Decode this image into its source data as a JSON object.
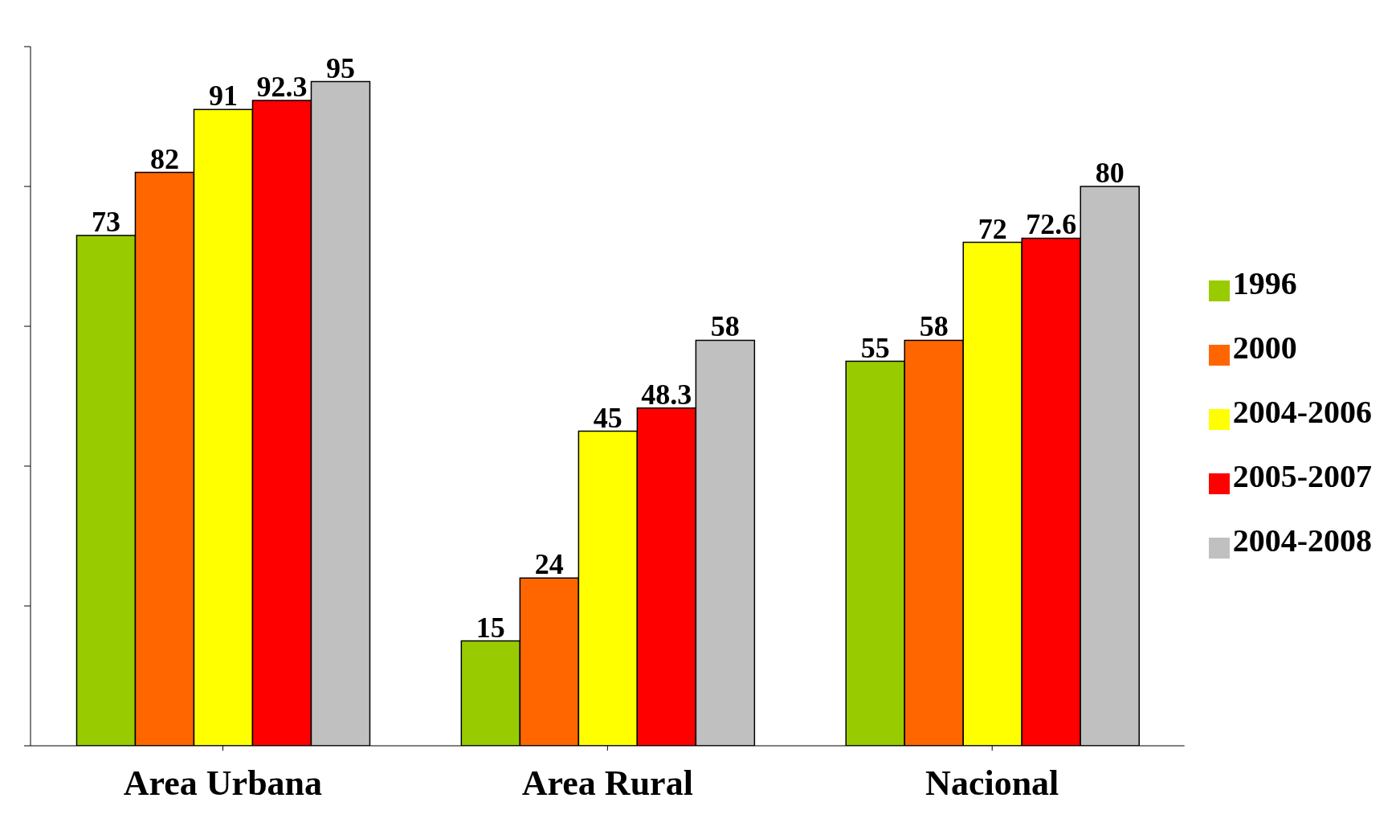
{
  "chart_data": {
    "type": "bar",
    "categories": [
      "Area Urbana",
      "Area Rural",
      "Nacional"
    ],
    "series": [
      {
        "name": "1996",
        "color": "#99cc00",
        "values": [
          73,
          15,
          55
        ]
      },
      {
        "name": "2000",
        "color": "#ff6600",
        "values": [
          82,
          24,
          58
        ]
      },
      {
        "name": "2004-2006",
        "color": "#ffff00",
        "values": [
          91,
          45,
          72
        ]
      },
      {
        "name": "2005-2007",
        "color": "#ff0000",
        "values": [
          92.3,
          48.3,
          72.6
        ]
      },
      {
        "name": "2004-2008",
        "color": "#c0c0c0",
        "values": [
          95,
          58,
          80
        ]
      }
    ],
    "ylim": [
      0,
      100
    ],
    "yticks": [
      {
        "value": 0,
        "label": null
      },
      {
        "value": 20,
        "label": null
      },
      {
        "value": 40,
        "label": null
      },
      {
        "value": 60,
        "label": null
      },
      {
        "value": 80,
        "label": null
      },
      {
        "value": 100,
        "label": null
      }
    ],
    "tick_labels": "x",
    "data_labels": true,
    "legend": "right",
    "grid": false
  }
}
